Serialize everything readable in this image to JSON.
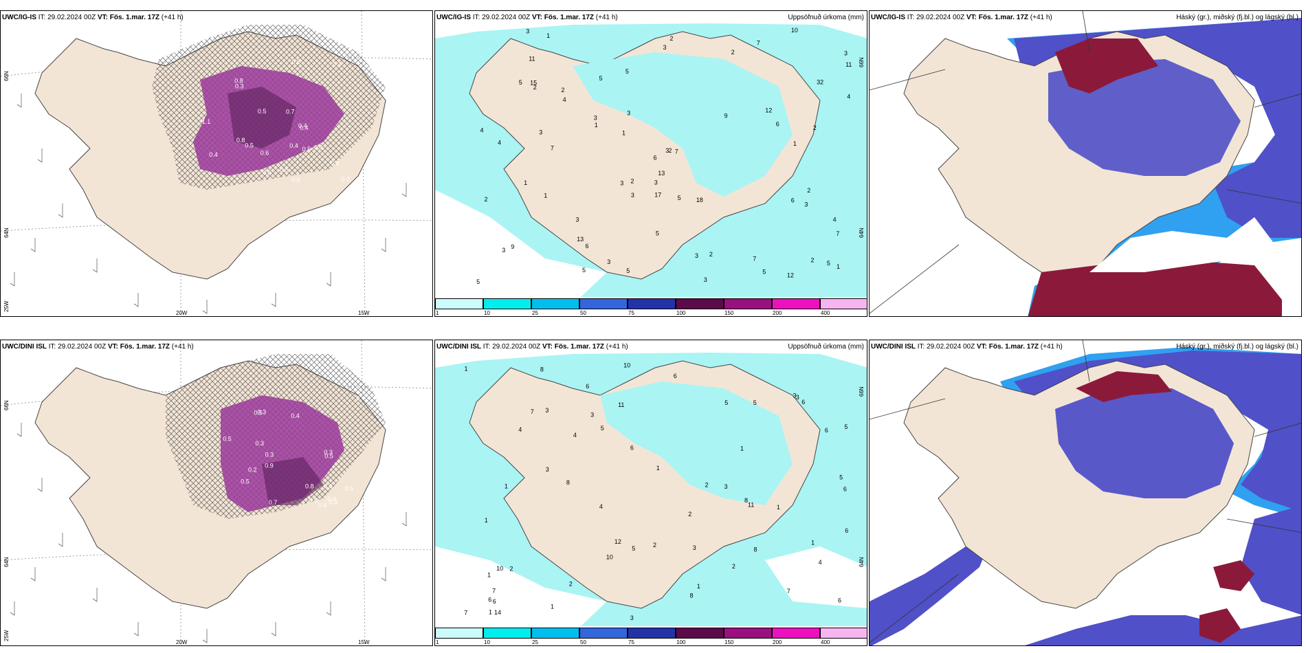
{
  "colors": {
    "land": "#f3e5d6",
    "ocean_precip": "#aaf4f4",
    "purple_precip": "#9b3a9b",
    "cloud_low": "#5050c8",
    "cloud_high": "#8b1a3a",
    "cloud_edge": "#30a0f0"
  },
  "panels": [
    {
      "id": "a",
      "model": "UWC/IG-IS",
      "it_label": "IT: 29.02.2024 00Z",
      "vt_label": "VT: Fös. 1.mar. 17Z",
      "lead": "(+41 h)",
      "right_title": "",
      "axis_labels": {
        "lat_top": "66N",
        "lat_mid": "64N",
        "lon_left": "25W",
        "lon_a": "20W",
        "lon_b": "15W"
      }
    },
    {
      "id": "b",
      "model": "UWC/IG-IS",
      "it_label": "IT: 29.02.2024 00Z",
      "vt_label": "VT: Fös. 1.mar. 17Z",
      "lead": "(+41 h)",
      "right_title": "Uppsöfnuð úrkoma (mm)",
      "axis_labels": {
        "lat_top": "66N",
        "lat_mid": "64N"
      },
      "values": [
        "2",
        "5",
        "3",
        "2",
        "3",
        "5",
        "3",
        "2",
        "6",
        "7",
        "7",
        "5",
        "13",
        "7",
        "6",
        "12",
        "7",
        "3",
        "3",
        "3",
        "10",
        "11",
        "6",
        "9",
        "3",
        "3",
        "15",
        "5",
        "3",
        "3",
        "3",
        "5",
        "5",
        "3",
        "2",
        "1",
        "1",
        "1",
        "6",
        "7",
        "5",
        "4",
        "4",
        "4",
        "3",
        "3",
        "2",
        "2",
        "4",
        "1",
        "2",
        "2",
        "2",
        "2",
        "3",
        "5",
        "3",
        "1",
        "5",
        "5",
        "4",
        "11",
        "17",
        "32",
        "9",
        "12",
        "13",
        "18",
        "2",
        "1",
        "1"
      ]
    },
    {
      "id": "c",
      "model": "UWC/IG-IS",
      "it_label": "IT: 29.02.2024 00Z",
      "vt_label": "VT: Fös. 1.mar. 17Z",
      "lead": "(+41 h)",
      "right_title": "Háský (gr.), miðský (fj.bl.) og lágský (bl.)"
    },
    {
      "id": "d",
      "model": "UWC/DINI ISL",
      "it_label": "IT: 29.02.2024 00Z",
      "vt_label": "VT: Fös. 1.mar. 17Z",
      "lead": "(+41 h)",
      "right_title": "",
      "axis_labels": {
        "lat_top": "66N",
        "lat_mid": "64N",
        "lon_left": "25W",
        "lon_a": "20W",
        "lon_b": "15W"
      }
    },
    {
      "id": "e",
      "model": "UWC/DINI ISL",
      "it_label": "IT: 29.02.2024 00Z",
      "vt_label": "VT: Fös. 1.mar. 17Z",
      "lead": "(+41 h)",
      "right_title": "Uppsöfnuð úrkoma (mm)",
      "axis_labels": {
        "lat_top": "66N",
        "lat_mid": "64N"
      },
      "values": [
        "1",
        "1",
        "1",
        "2",
        "10",
        "7",
        "4",
        "3",
        "3",
        "3",
        "5",
        "8",
        "8",
        "6",
        "14",
        "12",
        "5",
        "7",
        "6",
        "8",
        "10",
        "6",
        "2",
        "7",
        "10",
        "5",
        "11",
        "11",
        "6",
        "1",
        "2",
        "6",
        "7",
        "5",
        "4",
        "6",
        "6",
        "6",
        "4",
        "2",
        "5",
        "3",
        "3",
        "3",
        "1",
        "1",
        "1",
        "1",
        "2",
        "6",
        "8",
        "6",
        "8",
        "2",
        "1",
        "1",
        "1",
        "5",
        "4",
        "3",
        "3"
      ]
    },
    {
      "id": "f",
      "model": "UWC/DINI ISL",
      "it_label": "IT: 29.02.2024 00Z",
      "vt_label": "VT: Fös. 1.mar. 17Z",
      "lead": "(+41 h)",
      "right_title": "Háský (gr.), miðský (fj.bl.) og lágský (bl.)"
    }
  ],
  "hatch_values_a": [
    "0.5",
    "0.4",
    "0.6",
    "0.5",
    "0.8",
    "0.4",
    "0.3",
    "0.5",
    "0.6",
    "0.4",
    "0.8",
    "0.4",
    "1.1",
    "0.5",
    "0.4",
    "0.3",
    "0.4",
    "0.6",
    "0.7",
    "0.4",
    "0.5"
  ],
  "hatch_values_d": [
    "0.4",
    "0.7",
    "0.5",
    "0.5",
    "0.4",
    "0.2",
    "0.6",
    "0.5",
    "0.8",
    "0.3",
    "0.5",
    "0.3",
    "0.4",
    "0.3",
    "0.5",
    "0.3",
    "0.5",
    "0.3",
    "0.4",
    "0.9"
  ],
  "colorbar": {
    "ticks": [
      "1",
      "10",
      "25",
      "50",
      "75",
      "100",
      "150",
      "200",
      "400"
    ],
    "colors": [
      "#ccfbfb",
      "#00eeee",
      "#00bfef",
      "#3366dd",
      "#2233aa",
      "#5c0a4a",
      "#9a1080",
      "#ee10c0",
      "#f7b4f0"
    ]
  }
}
